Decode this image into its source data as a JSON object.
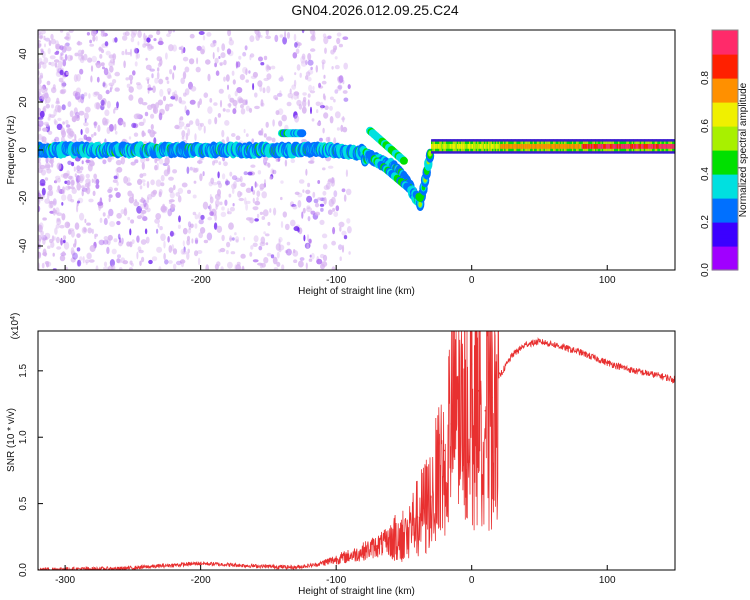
{
  "title": "GN04.2026.012.09.25.C24",
  "chart_data": [
    {
      "type": "heatmap",
      "title": "GN04.2026.012.09.25.C24",
      "xlabel": "Height of straight line (km)",
      "ylabel": "Frequency (Hz)",
      "xlim": [
        -320,
        150
      ],
      "ylim": [
        -50,
        50
      ],
      "x_ticks": [
        -300,
        -200,
        -100,
        0,
        100
      ],
      "y_ticks": [
        -40,
        -20,
        0,
        20,
        40
      ],
      "colorbar": {
        "label": "Normalized spectral amplitude",
        "range": [
          0.0,
          1.0
        ],
        "ticks": [
          0.0,
          0.2,
          0.4,
          0.6,
          0.8
        ]
      },
      "ridge": [
        {
          "x": -320,
          "y": 0
        },
        {
          "x": -200,
          "y": 0
        },
        {
          "x": -120,
          "y": -1
        },
        {
          "x": -90,
          "y": -5
        },
        {
          "x": -75,
          "y": -3
        },
        {
          "x": -55,
          "y": -8
        },
        {
          "x": -45,
          "y": -16
        },
        {
          "x": -38,
          "y": -22
        },
        {
          "x": -30,
          "y": 0
        },
        {
          "x": 0,
          "y": 1
        },
        {
          "x": 50,
          "y": 2
        },
        {
          "x": 150,
          "y": 2
        }
      ]
    },
    {
      "type": "line",
      "xlabel": "Height of straight line (km)",
      "ylabel": "SNR (10 * v/v)",
      "y_multiplier": "(x10",
      "y_multiplier_exp": "4",
      "y_multiplier_close": ")",
      "xlim": [
        -320,
        150
      ],
      "ylim": [
        0,
        1.8
      ],
      "x_ticks": [
        -300,
        -200,
        -100,
        0,
        100
      ],
      "y_ticks": [
        0.0,
        0.5,
        1.0,
        1.5
      ],
      "y_tick_labels": [
        "0.0",
        "0.5",
        "1.0",
        "1.5"
      ],
      "series": [
        {
          "name": "SNR",
          "color": "#e83030",
          "x": [
            -320,
            -260,
            -200,
            -160,
            -130,
            -115,
            -100,
            -85,
            -70,
            -60,
            -50,
            -40,
            -30,
            -25,
            -20,
            -15,
            -10,
            -5,
            0,
            5,
            10,
            15,
            20,
            30,
            40,
            50,
            60,
            70,
            80,
            90,
            100,
            110,
            120,
            130,
            140,
            150
          ],
          "values": [
            0.005,
            0.01,
            0.05,
            0.03,
            0.02,
            0.04,
            0.08,
            0.12,
            0.18,
            0.22,
            0.28,
            0.4,
            0.55,
            0.7,
            0.9,
            1.1,
            1.3,
            1.45,
            1.55,
            1.35,
            1.2,
            1.3,
            1.45,
            1.62,
            1.7,
            1.72,
            1.7,
            1.67,
            1.64,
            1.6,
            1.56,
            1.53,
            1.5,
            1.48,
            1.46,
            1.43
          ]
        }
      ]
    }
  ]
}
